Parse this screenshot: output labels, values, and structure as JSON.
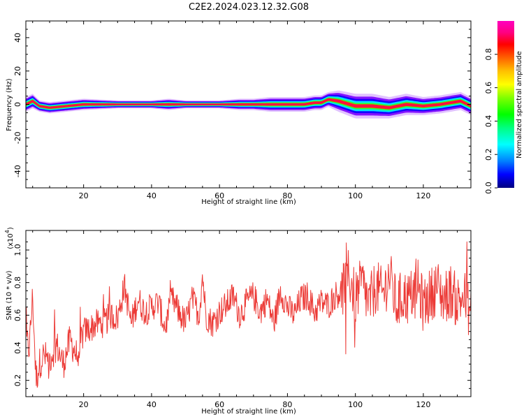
{
  "figure": {
    "title": "C2E2.2024.023.12.32.G08"
  },
  "chart_data": [
    {
      "type": "heatmap",
      "xlabel": "Height of straight line (km)",
      "ylabel": "Frequency (Hz)",
      "xlim": [
        3,
        134
      ],
      "ylim": [
        -50,
        50
      ],
      "xticks": [
        20,
        40,
        60,
        80,
        100,
        120
      ],
      "yticks": [
        -40,
        -20,
        0,
        20,
        40
      ],
      "colorbar": {
        "label": "Normalized spectral amplitude",
        "range": [
          0,
          1
        ],
        "ticks": [
          "0.0",
          "0.2",
          "0.4",
          "0.6",
          "0.8"
        ],
        "colormap": "gist_ncar"
      },
      "ridge": {
        "x": [
          3,
          5,
          7,
          10,
          15,
          20,
          30,
          40,
          45,
          50,
          60,
          66,
          70,
          75,
          80,
          85,
          88,
          90,
          92,
          95,
          100,
          105,
          110,
          115,
          120,
          125,
          128,
          131,
          134
        ],
        "y": [
          0,
          2,
          -1,
          -2,
          -1,
          0,
          0,
          0,
          0,
          0,
          0,
          0,
          0,
          0,
          0,
          0,
          1,
          1,
          3,
          2,
          -1,
          -1,
          -2,
          0,
          -1,
          0,
          1,
          2,
          -1
        ],
        "halfwidth": [
          4,
          4,
          3,
          3,
          3,
          3,
          2,
          2,
          3,
          2,
          2,
          3,
          3,
          4,
          4,
          4,
          4,
          4,
          4,
          6,
          7,
          7,
          6,
          6,
          5,
          5,
          5,
          5,
          5
        ]
      }
    },
    {
      "type": "line",
      "xlabel": "Height of straight line (km)",
      "ylabel": "SNR (10 * v/v)",
      "yexponent": "(x10",
      "yexponent_power": "4",
      "exponent_close": ")",
      "xlim": [
        3,
        134
      ],
      "ylim": [
        0.1,
        1.12
      ],
      "xticks": [
        20,
        40,
        60,
        80,
        100,
        120
      ],
      "yticks": [
        0.2,
        0.4,
        0.6,
        0.8,
        1.0
      ],
      "color": "#ec3a36",
      "series": [
        {
          "x": [
            3,
            4,
            5,
            6,
            7,
            8,
            10,
            12,
            14,
            16,
            18,
            20,
            22,
            24,
            26,
            28,
            30,
            32,
            34,
            36,
            38,
            40,
            42,
            44,
            46,
            48,
            50,
            52,
            54,
            55,
            56,
            58,
            60,
            62,
            64,
            66,
            68,
            70,
            72,
            74,
            76,
            78,
            80,
            82,
            84,
            86,
            88,
            90,
            92,
            94,
            96,
            98,
            100,
            102,
            104,
            106,
            108,
            110,
            112,
            114,
            116,
            118,
            120,
            122,
            124,
            126,
            128,
            130,
            132,
            134
          ],
          "y": [
            0.45,
            0.4,
            0.72,
            0.2,
            0.3,
            0.35,
            0.33,
            0.42,
            0.3,
            0.45,
            0.35,
            0.5,
            0.52,
            0.55,
            0.55,
            0.6,
            0.58,
            0.78,
            0.55,
            0.7,
            0.62,
            0.65,
            0.68,
            0.52,
            0.7,
            0.62,
            0.55,
            0.7,
            0.6,
            0.85,
            0.6,
            0.55,
            0.62,
            0.66,
            0.72,
            0.6,
            0.68,
            0.72,
            0.62,
            0.7,
            0.55,
            0.75,
            0.65,
            0.6,
            0.7,
            0.72,
            0.62,
            0.68,
            0.66,
            0.72,
            0.75,
            0.85,
            0.7,
            0.8,
            0.66,
            0.78,
            0.72,
            0.85,
            0.66,
            0.72,
            0.7,
            0.8,
            0.66,
            0.72,
            0.78,
            0.7,
            0.75,
            0.68,
            0.72,
            0.6
          ]
        }
      ]
    }
  ]
}
